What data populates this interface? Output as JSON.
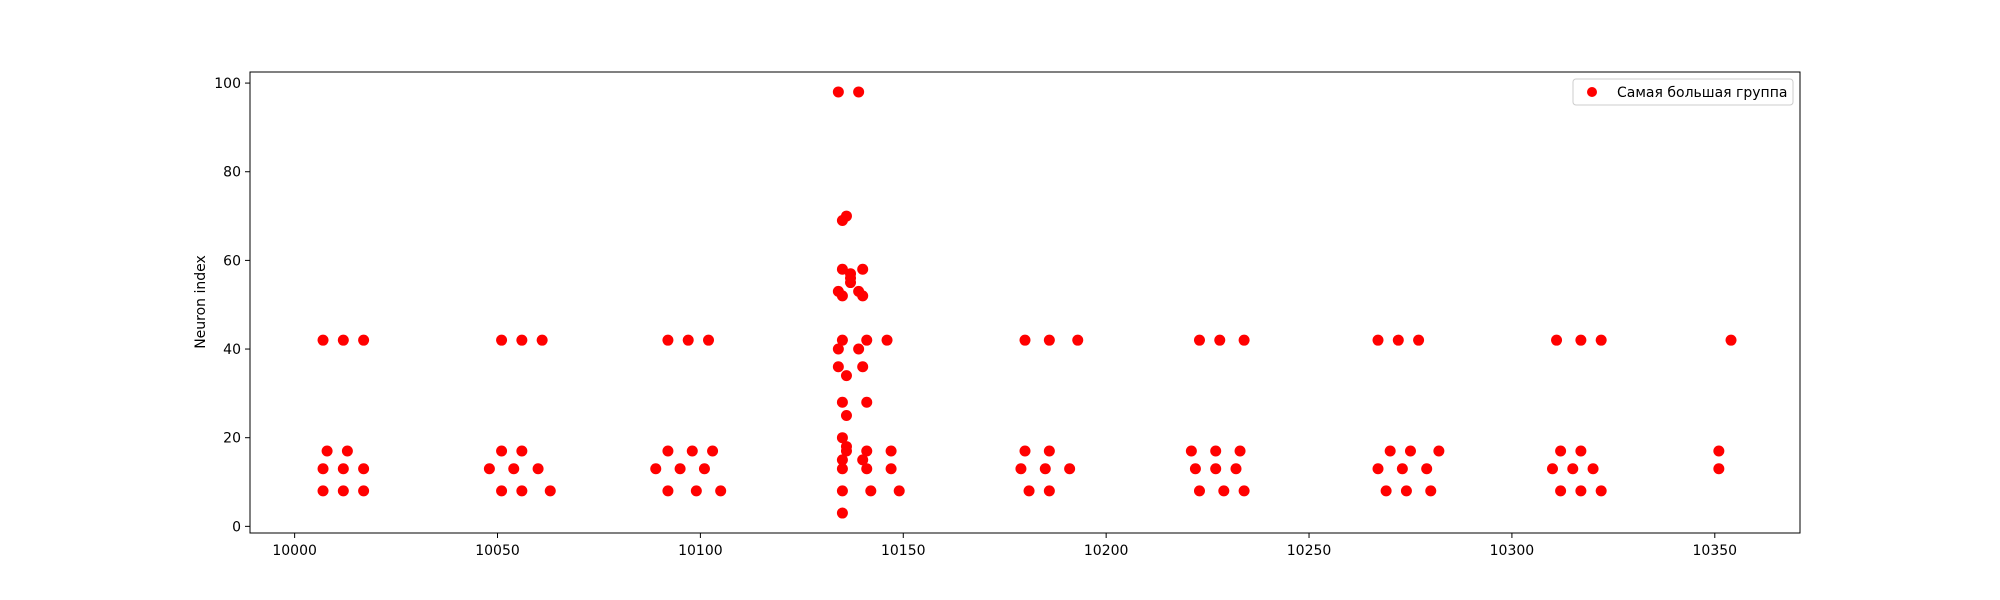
{
  "chart_data": {
    "type": "scatter",
    "title": "",
    "xlabel": "",
    "ylabel": "Neuron index",
    "xlim": [
      9989,
      10371
    ],
    "ylim": [
      -1.5,
      102.5
    ],
    "xticks": [
      10000,
      10050,
      10100,
      10150,
      10200,
      10250,
      10300,
      10350
    ],
    "yticks": [
      0,
      20,
      40,
      60,
      80,
      100
    ],
    "grid": false,
    "legend_position": "top-right",
    "colors": {
      "series": "#ff0000",
      "axis": "#000000",
      "legend_border": "#cccccc"
    },
    "series": [
      {
        "name": "Самая большая группа",
        "color": "#ff0000",
        "points": [
          [
            10007,
            42
          ],
          [
            10012,
            42
          ],
          [
            10017,
            42
          ],
          [
            10008,
            17
          ],
          [
            10013,
            17
          ],
          [
            10007,
            13
          ],
          [
            10012,
            13
          ],
          [
            10017,
            13
          ],
          [
            10007,
            8
          ],
          [
            10012,
            8
          ],
          [
            10017,
            8
          ],
          [
            10051,
            42
          ],
          [
            10056,
            42
          ],
          [
            10061,
            42
          ],
          [
            10051,
            17
          ],
          [
            10056,
            17
          ],
          [
            10048,
            13
          ],
          [
            10054,
            13
          ],
          [
            10060,
            13
          ],
          [
            10051,
            8
          ],
          [
            10056,
            8
          ],
          [
            10063,
            8
          ],
          [
            10092,
            42
          ],
          [
            10097,
            42
          ],
          [
            10102,
            42
          ],
          [
            10092,
            17
          ],
          [
            10098,
            17
          ],
          [
            10103,
            17
          ],
          [
            10089,
            13
          ],
          [
            10095,
            13
          ],
          [
            10101,
            13
          ],
          [
            10092,
            8
          ],
          [
            10099,
            8
          ],
          [
            10105,
            8
          ],
          [
            10134,
            98
          ],
          [
            10139,
            98
          ],
          [
            10136,
            70
          ],
          [
            10135,
            69
          ],
          [
            10135,
            58
          ],
          [
            10140,
            58
          ],
          [
            10137,
            57
          ],
          [
            10137,
            56
          ],
          [
            10137,
            55
          ],
          [
            10134,
            53
          ],
          [
            10139,
            53
          ],
          [
            10135,
            52
          ],
          [
            10140,
            52
          ],
          [
            10135,
            42
          ],
          [
            10141,
            42
          ],
          [
            10146,
            42
          ],
          [
            10134,
            40
          ],
          [
            10139,
            40
          ],
          [
            10134,
            36
          ],
          [
            10140,
            36
          ],
          [
            10136,
            34
          ],
          [
            10135,
            28
          ],
          [
            10141,
            28
          ],
          [
            10136,
            25
          ],
          [
            10135,
            20
          ],
          [
            10136,
            18
          ],
          [
            10136,
            17
          ],
          [
            10141,
            17
          ],
          [
            10147,
            17
          ],
          [
            10135,
            15
          ],
          [
            10140,
            15
          ],
          [
            10135,
            13
          ],
          [
            10141,
            13
          ],
          [
            10147,
            13
          ],
          [
            10135,
            8
          ],
          [
            10142,
            8
          ],
          [
            10149,
            8
          ],
          [
            10135,
            3
          ],
          [
            10180,
            42
          ],
          [
            10186,
            42
          ],
          [
            10193,
            42
          ],
          [
            10180,
            17
          ],
          [
            10186,
            17
          ],
          [
            10179,
            13
          ],
          [
            10185,
            13
          ],
          [
            10191,
            13
          ],
          [
            10181,
            8
          ],
          [
            10186,
            8
          ],
          [
            10223,
            42
          ],
          [
            10228,
            42
          ],
          [
            10234,
            42
          ],
          [
            10221,
            17
          ],
          [
            10227,
            17
          ],
          [
            10233,
            17
          ],
          [
            10222,
            13
          ],
          [
            10227,
            13
          ],
          [
            10232,
            13
          ],
          [
            10223,
            8
          ],
          [
            10229,
            8
          ],
          [
            10234,
            8
          ],
          [
            10267,
            42
          ],
          [
            10272,
            42
          ],
          [
            10277,
            42
          ],
          [
            10270,
            17
          ],
          [
            10275,
            17
          ],
          [
            10282,
            17
          ],
          [
            10267,
            13
          ],
          [
            10273,
            13
          ],
          [
            10279,
            13
          ],
          [
            10269,
            8
          ],
          [
            10274,
            8
          ],
          [
            10280,
            8
          ],
          [
            10311,
            42
          ],
          [
            10317,
            42
          ],
          [
            10322,
            42
          ],
          [
            10312,
            17
          ],
          [
            10317,
            17
          ],
          [
            10310,
            13
          ],
          [
            10315,
            13
          ],
          [
            10320,
            13
          ],
          [
            10312,
            8
          ],
          [
            10317,
            8
          ],
          [
            10322,
            8
          ],
          [
            10354,
            42
          ],
          [
            10351,
            17
          ],
          [
            10351,
            13
          ]
        ]
      }
    ]
  }
}
